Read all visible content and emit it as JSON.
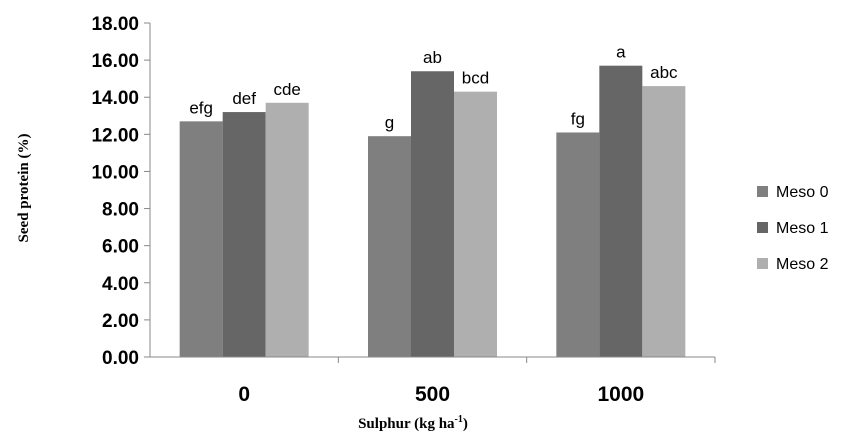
{
  "chart_data": {
    "type": "bar",
    "title": "",
    "xlabel": "Sulphur  (kg ha",
    "xlabel_sup": "-1",
    "xlabel_suffix": ")",
    "ylabel": "Seed protein (%)",
    "ylim": [
      0,
      18
    ],
    "yticks": [
      "0.00",
      "2.00",
      "4.00",
      "6.00",
      "8.00",
      "10.00",
      "12.00",
      "14.00",
      "16.00",
      "18.00"
    ],
    "categories": [
      "0",
      "500",
      "1000"
    ],
    "series": [
      {
        "name": "Meso 0",
        "color": "#7f7f7f",
        "values": [
          12.7,
          11.9,
          12.1
        ],
        "labels": [
          "efg",
          "g",
          "fg"
        ]
      },
      {
        "name": "Meso 1",
        "color": "#666666",
        "values": [
          13.2,
          15.4,
          15.7
        ],
        "labels": [
          "def",
          "ab",
          "a"
        ]
      },
      {
        "name": "Meso 2",
        "color": "#afafaf",
        "values": [
          13.7,
          14.3,
          14.6
        ],
        "labels": [
          "cde",
          "bcd",
          "abc"
        ]
      }
    ],
    "grid": false,
    "legend_position": "right"
  }
}
